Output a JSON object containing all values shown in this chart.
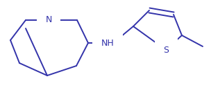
{
  "line_color": "#3333AA",
  "line_width": 1.4,
  "bg_color": "#FFFFFF",
  "figsize": [
    3.04,
    1.27
  ],
  "dpi": 100,
  "xlim": [
    0,
    304
  ],
  "ylim": [
    0,
    127
  ]
}
